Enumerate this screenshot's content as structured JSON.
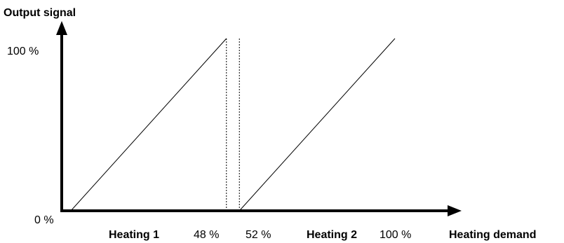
{
  "chart_data": {
    "type": "line",
    "title": "",
    "ylabel": "Output signal",
    "xlabel": "Heating demand",
    "x_ticks": [
      {
        "value": 48,
        "label": "48 %"
      },
      {
        "value": 52,
        "label": "52 %"
      },
      {
        "value": 100,
        "label": "100 %"
      }
    ],
    "y_ticks": [
      {
        "value": 0,
        "label": "0 %"
      },
      {
        "value": 100,
        "label": "100 %"
      }
    ],
    "annotations": [
      {
        "text": "Heating 1",
        "x": 24
      },
      {
        "text": "Heating 2",
        "x": 76
      }
    ],
    "series": [
      {
        "points": [
          [
            0,
            0
          ],
          [
            48,
            100
          ]
        ]
      },
      {
        "points": [
          [
            52,
            0
          ],
          [
            100,
            100
          ]
        ]
      }
    ],
    "reference_lines": [
      48,
      52
    ],
    "xlim": [
      0,
      100
    ],
    "ylim": [
      0,
      100
    ],
    "grid": false,
    "colors": {
      "line": "#000000",
      "background": "#ffffff"
    }
  }
}
